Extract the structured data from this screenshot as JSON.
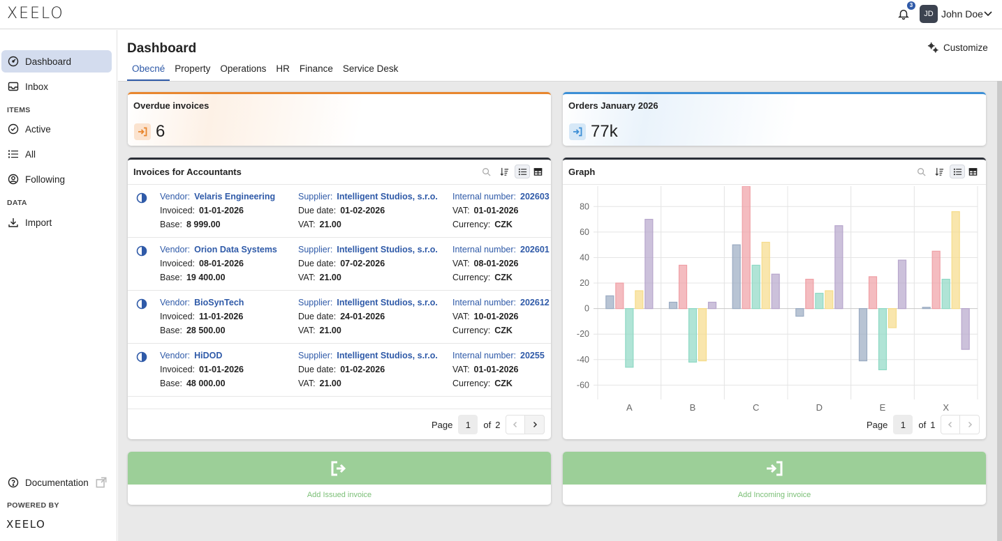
{
  "app": {
    "logo": "XEELO"
  },
  "header": {
    "notifications_count": "3",
    "avatar_initials": "JD",
    "user_name": "John Doe"
  },
  "sidebar": {
    "items": [
      {
        "label": "Dashboard"
      },
      {
        "label": "Inbox"
      },
      {
        "label": "Active"
      },
      {
        "label": "All"
      },
      {
        "label": "Following"
      },
      {
        "label": "Import"
      }
    ],
    "sections": {
      "items": "ITEMS",
      "data": "DATA"
    },
    "documentation": "Documentation",
    "powered_by": "POWERED BY",
    "powered_logo": "XEELO"
  },
  "page": {
    "title": "Dashboard",
    "customize": "Customize",
    "tabs": [
      "Obecné",
      "Property",
      "Operations",
      "HR",
      "Finance",
      "Service Desk"
    ]
  },
  "kpis": [
    {
      "title": "Overdue invoices",
      "value": "6",
      "accent": "#e8862e"
    },
    {
      "title": "Orders January 2026",
      "value": "77k",
      "accent": "#3c8fd6"
    }
  ],
  "invoices": {
    "title": "Invoices for Accountants",
    "rows": [
      {
        "vendor": "Velaris Engineering",
        "invoiced": "01-01-2026",
        "base": "8 999.00",
        "supplier": "Intelligent Studios, s.r.o.",
        "due": "01-02-2026",
        "vat": "21.00",
        "internal": "202603",
        "vat_date": "01-01-2026",
        "currency": "CZK"
      },
      {
        "vendor": "Orion Data Systems",
        "invoiced": "08-01-2026",
        "base": "19 400.00",
        "supplier": "Intelligent Studios, s.r.o.",
        "due": "07-02-2026",
        "vat": "21.00",
        "internal": "202601",
        "vat_date": "08-01-2026",
        "currency": "CZK"
      },
      {
        "vendor": "BioSynTech",
        "invoiced": "11-01-2026",
        "base": "28 500.00",
        "supplier": "Intelligent Studios, s.r.o.",
        "due": "24-01-2026",
        "vat": "21.00",
        "internal": "202612",
        "vat_date": "10-01-2026",
        "currency": "CZK"
      },
      {
        "vendor": "HiDOD",
        "invoiced": "01-01-2026",
        "base": "48 000.00",
        "supplier": "Intelligent Studios, s.r.o.",
        "due": "01-02-2026",
        "vat": "21.00",
        "internal": "20255",
        "vat_date": "01-01-2026",
        "currency": "CZK"
      }
    ],
    "labels": {
      "vendor": "Vendor:",
      "invoiced": "Invoiced:",
      "base": "Base:",
      "supplier": "Supplier:",
      "due": "Due date:",
      "vat": "VAT:",
      "internal": "Internal number:",
      "vat_date": "VAT:",
      "currency": "Currency:"
    },
    "pager": {
      "label": "Page",
      "current": "1",
      "of": "of",
      "total": "2"
    }
  },
  "graph": {
    "title": "Graph",
    "pager": {
      "label": "Page",
      "current": "1",
      "of": "of",
      "total": "1"
    }
  },
  "chart_data": {
    "type": "bar",
    "categories": [
      "A",
      "B",
      "C",
      "D",
      "E",
      "X"
    ],
    "series": [
      {
        "values": [
          10,
          5,
          50,
          -6,
          -41,
          1
        ],
        "color": "#9aabc2"
      },
      {
        "values": [
          20,
          34,
          96,
          23,
          25,
          45
        ],
        "color": "#ef9fa5"
      },
      {
        "values": [
          -46,
          -42,
          34,
          12,
          -48,
          23
        ],
        "color": "#8ed9c4"
      },
      {
        "values": [
          14,
          -41,
          52,
          14,
          -15,
          76
        ],
        "color": "#f6dc8a"
      },
      {
        "values": [
          70,
          5,
          27,
          65,
          38,
          -32
        ],
        "color": "#b7a6cc"
      }
    ],
    "ylim": [
      -68,
      96
    ],
    "yticks": [
      80,
      60,
      40,
      20,
      0,
      -20,
      -40,
      -60
    ],
    "grid": true
  },
  "actions": [
    {
      "label": "Add Issued invoice"
    },
    {
      "label": "Add Incoming invoice"
    }
  ]
}
